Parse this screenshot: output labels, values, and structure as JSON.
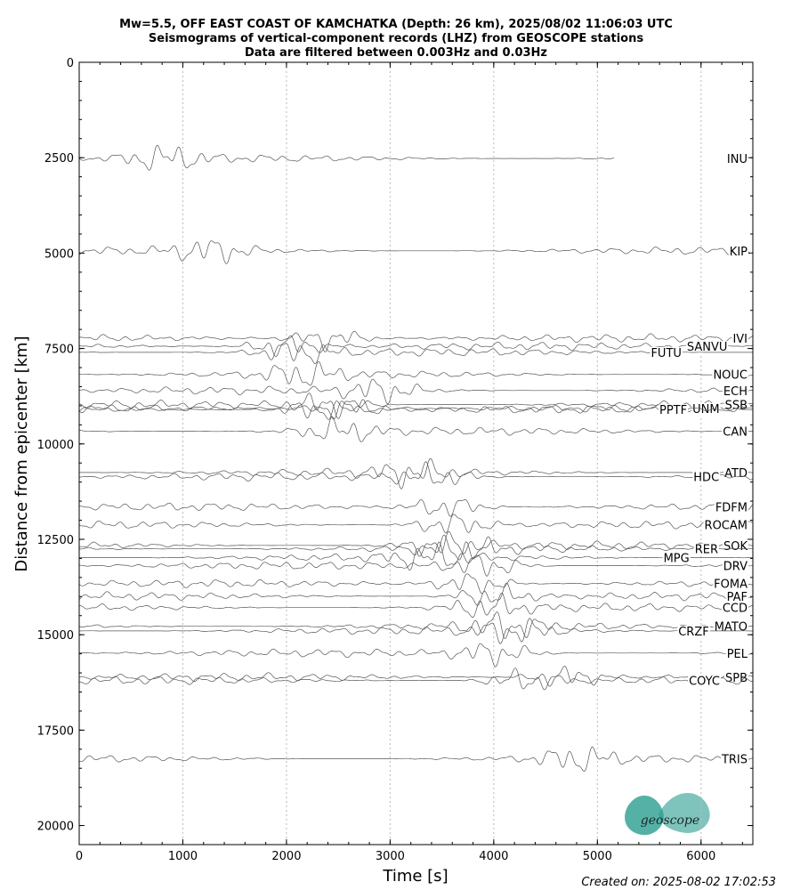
{
  "chart_data": {
    "type": "record-section",
    "title": [
      "Mw=5.5, OFF EAST COAST OF KAMCHATKA (Depth: 26 km), 2025/08/02 11:06:03 UTC",
      "Seismograms of vertical-component records (LHZ) from GEOSCOPE stations",
      "Data are filtered between 0.003Hz and 0.03Hz"
    ],
    "x_label": "Time [s]",
    "y_label": "Distance from epicenter [km]",
    "xlim": [
      0,
      6500
    ],
    "ylim": [
      20500,
      0
    ],
    "xticks": [
      0,
      1000,
      2000,
      3000,
      4000,
      5000,
      6000
    ],
    "yticks": [
      0,
      2500,
      5000,
      7500,
      10000,
      12500,
      15000,
      17500,
      20000
    ],
    "grid": true,
    "color": "#555555",
    "stations": [
      {
        "name": "INU",
        "distance": 2520,
        "peak_time": 820,
        "end_time": 5160
      },
      {
        "name": "KIP",
        "distance": 4940,
        "peak_time": 1270,
        "end_time": 6500
      },
      {
        "name": "IVI",
        "distance": 7230,
        "peak_time": 2400,
        "end_time": 6500
      },
      {
        "name": "SANVU",
        "distance": 7440,
        "peak_time": 2000,
        "end_time": 6500
      },
      {
        "name": "FUTU",
        "distance": 7600,
        "peak_time": 2100,
        "end_time": 6500
      },
      {
        "name": "NOUC",
        "distance": 8180,
        "peak_time": 2150,
        "end_time": 6500
      },
      {
        "name": "ECH",
        "distance": 8600,
        "peak_time": 2900,
        "end_time": 6500
      },
      {
        "name": "SSB",
        "distance": 8970,
        "peak_time": 2400,
        "end_time": 6500
      },
      {
        "name": "UNM",
        "distance": 9070,
        "peak_time": 2600,
        "end_time": 6500
      },
      {
        "name": "PPTF",
        "distance": 9100,
        "peak_time": 2300,
        "end_time": 6500
      },
      {
        "name": "CAN",
        "distance": 9670,
        "peak_time": 2500,
        "end_time": 6500
      },
      {
        "name": "ATD",
        "distance": 10750,
        "peak_time": 3200,
        "end_time": 6500
      },
      {
        "name": "HDC",
        "distance": 10860,
        "peak_time": 3400,
        "end_time": 6500
      },
      {
        "name": "FDFM",
        "distance": 11650,
        "peak_time": 3550,
        "end_time": 6500
      },
      {
        "name": "ROCAM",
        "distance": 12120,
        "peak_time": 3600,
        "end_time": 6500
      },
      {
        "name": "SOK",
        "distance": 12660,
        "peak_time": 3500,
        "end_time": 6500
      },
      {
        "name": "RER",
        "distance": 12750,
        "peak_time": 3700,
        "end_time": 6500
      },
      {
        "name": "MPG",
        "distance": 12980,
        "peak_time": 3400,
        "end_time": 6500
      },
      {
        "name": "DRV",
        "distance": 13190,
        "peak_time": 3900,
        "end_time": 6500
      },
      {
        "name": "FOMA",
        "distance": 13660,
        "peak_time": 3800,
        "end_time": 6500
      },
      {
        "name": "PAF",
        "distance": 13990,
        "peak_time": 4000,
        "end_time": 6500
      },
      {
        "name": "CCD",
        "distance": 14290,
        "peak_time": 3950,
        "end_time": 6500
      },
      {
        "name": "MATO",
        "distance": 14780,
        "peak_time": 4100,
        "end_time": 6500
      },
      {
        "name": "CRZF",
        "distance": 14900,
        "peak_time": 4200,
        "end_time": 6500
      },
      {
        "name": "PEL",
        "distance": 15480,
        "peak_time": 4000,
        "end_time": 6500
      },
      {
        "name": "SPB",
        "distance": 16110,
        "peak_time": 4700,
        "end_time": 6500
      },
      {
        "name": "COYC",
        "distance": 16200,
        "peak_time": 4300,
        "end_time": 6500
      },
      {
        "name": "TRIS",
        "distance": 18250,
        "peak_time": 4800,
        "end_time": 6500
      }
    ],
    "logo": "geoscope",
    "footer": "Created on: 2025-08-02 17:02:53"
  }
}
